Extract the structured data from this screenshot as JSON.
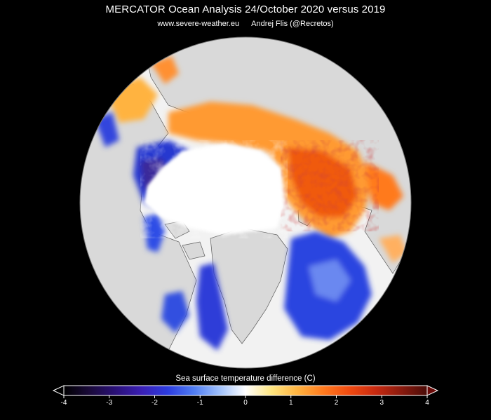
{
  "title": "MERCATOR Ocean Analysis  24/October 2020 versus 2019",
  "source_url": "www.severe-weather.eu",
  "author": "Andrej Flis (@Recretos)",
  "colorbar": {
    "title": "Sea surface temperature difference (C)",
    "ticks": [
      "-4",
      "-3",
      "-2",
      "-1",
      "0",
      "1",
      "2",
      "3",
      "4"
    ],
    "stops": [
      "#000000",
      "#1a0a3a",
      "#2a1078",
      "#3a1fb4",
      "#2c3ce0",
      "#4f7cf2",
      "#9fc0fb",
      "#ffffff",
      "#ffe680",
      "#ffb340",
      "#ff7a1e",
      "#f04a10",
      "#c82a10",
      "#8a1a0e",
      "#4a0c08"
    ]
  },
  "colors": {
    "background": "#000000",
    "land": "#d9d9d9",
    "ocean_outside": "#f2f2f2",
    "coastline": "#404040",
    "sea_ice": "#ffffff"
  }
}
